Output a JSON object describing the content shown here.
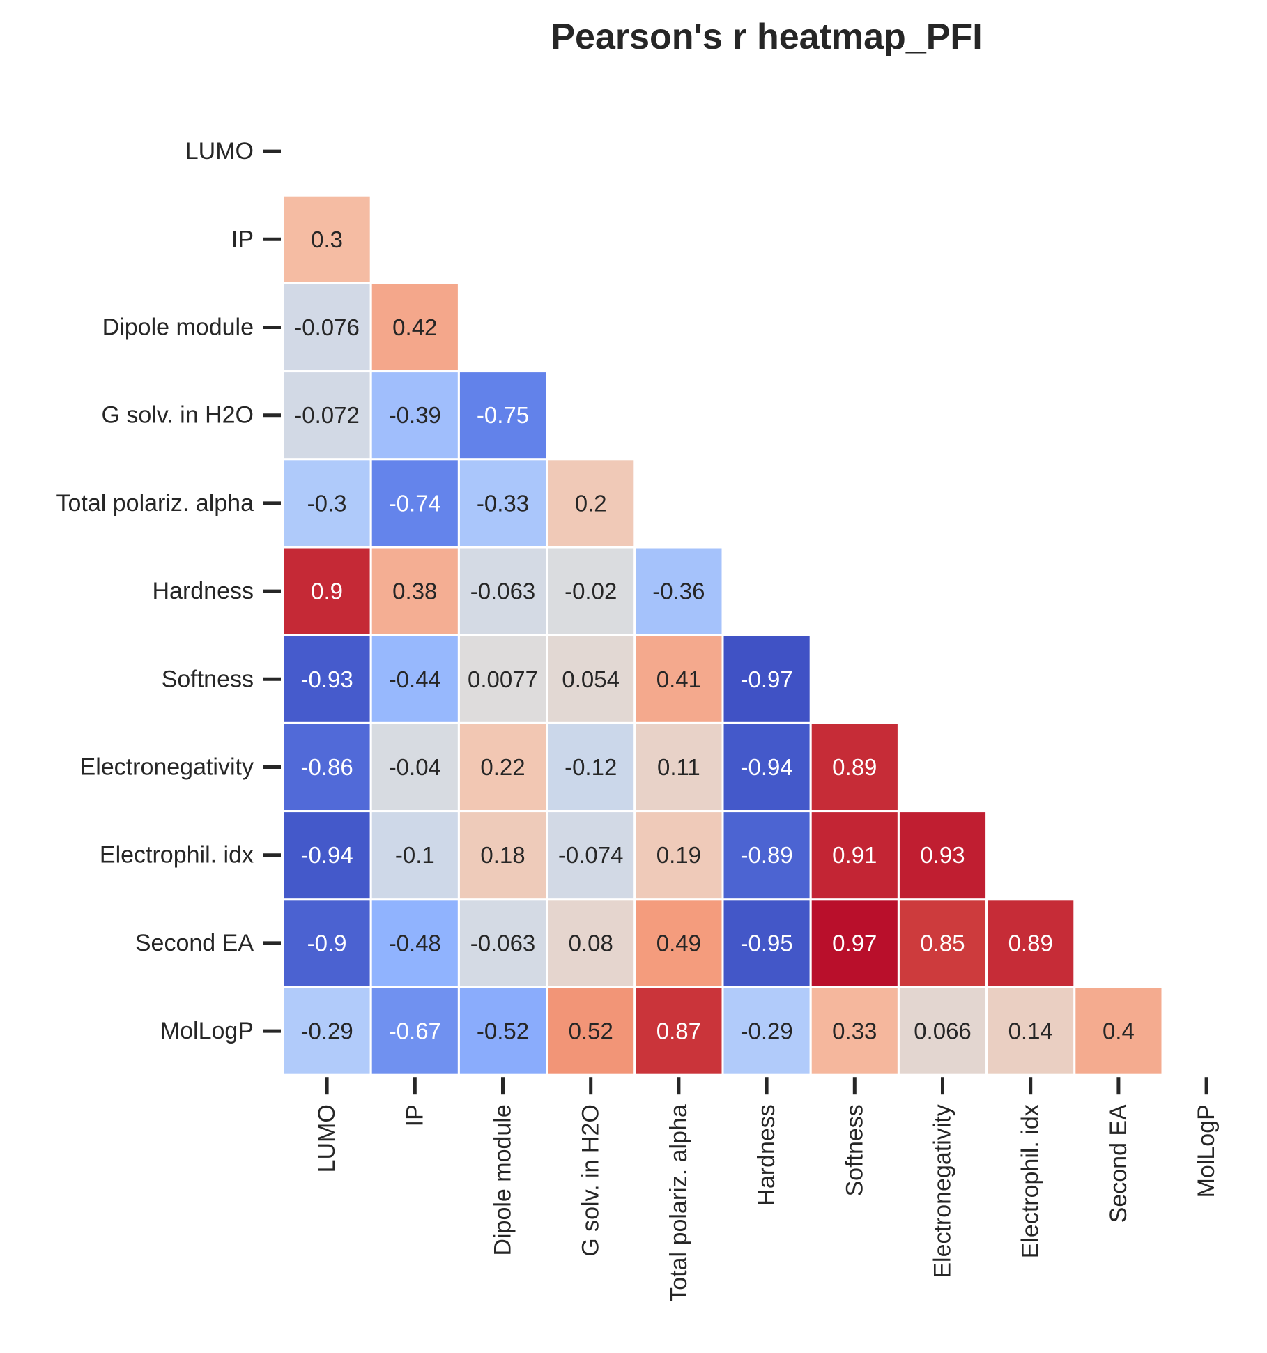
{
  "chart_data": {
    "type": "heatmap",
    "title": "Pearson's r heatmap_PFI",
    "variables": [
      "LUMO",
      "IP",
      "Dipole module",
      "G solv. in H2O",
      "Total polariz. alpha",
      "Hardness",
      "Softness",
      "Electronegativity",
      "Electrophil. idx",
      "Second EA",
      "MolLogP"
    ],
    "lower_triangle": [
      [],
      [
        0.3
      ],
      [
        -0.076,
        0.42
      ],
      [
        -0.072,
        -0.39,
        -0.75
      ],
      [
        -0.3,
        -0.74,
        -0.33,
        0.2
      ],
      [
        0.9,
        0.38,
        -0.063,
        -0.02,
        -0.36
      ],
      [
        -0.93,
        -0.44,
        0.0077,
        0.054,
        0.41,
        -0.97
      ],
      [
        -0.86,
        -0.04,
        0.22,
        -0.12,
        0.11,
        -0.94,
        0.89
      ],
      [
        -0.94,
        -0.1,
        0.18,
        -0.074,
        0.19,
        -0.89,
        0.91,
        0.93
      ],
      [
        -0.9,
        -0.48,
        -0.063,
        0.08,
        0.49,
        -0.95,
        0.97,
        0.85,
        0.89
      ],
      [
        -0.29,
        -0.67,
        -0.52,
        0.52,
        0.87,
        -0.29,
        0.33,
        0.066,
        0.14,
        0.4
      ]
    ],
    "value_range": [
      -1,
      1
    ],
    "colormap": "coolwarm",
    "mask": "upper-triangle-and-diagonal",
    "colorbar": false,
    "xlabel": "",
    "ylabel": ""
  },
  "colors": {
    "text_dark": "#262626",
    "text_light": "#ffffff",
    "cell_border": "#ffffff",
    "tick": "#262626",
    "background": "#ffffff"
  }
}
